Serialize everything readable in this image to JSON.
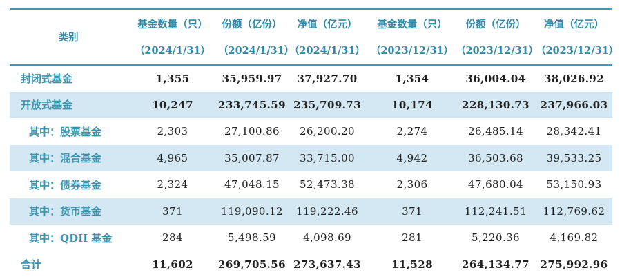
{
  "chart_data": {
    "type": "table",
    "columns": [
      {
        "label": "类别",
        "date": ""
      },
      {
        "label": "基金数量（只）",
        "date": "（2024/1/31）"
      },
      {
        "label": "份额（亿份）",
        "date": "（2024/1/31）"
      },
      {
        "label": "净值（亿元）",
        "date": "（2024/1/31）"
      },
      {
        "label": "基金数量（只）",
        "date": "（2023/12/31）"
      },
      {
        "label": "份额（亿份）",
        "date": "（2023/12/31）"
      },
      {
        "label": "净值（亿元）",
        "date": "（2023/12/31）"
      }
    ],
    "rows": [
      {
        "category": "封闭式基金",
        "indent": false,
        "bold": true,
        "striped": false,
        "values": [
          "1,355",
          "35,959.97",
          "37,927.70",
          "1,354",
          "36,004.04",
          "38,026.92"
        ]
      },
      {
        "category": "开放式基金",
        "indent": false,
        "bold": true,
        "striped": true,
        "values": [
          "10,247",
          "233,745.59",
          "235,709.73",
          "10,174",
          "228,130.73",
          "237,966.03"
        ]
      },
      {
        "category": "其中：股票基金",
        "indent": true,
        "bold": false,
        "striped": false,
        "values": [
          "2,303",
          "27,100.86",
          "26,200.20",
          "2,274",
          "26,485.14",
          "28,342.41"
        ]
      },
      {
        "category": "其中：混合基金",
        "indent": true,
        "bold": false,
        "striped": true,
        "values": [
          "4,965",
          "35,007.87",
          "33,715.00",
          "4,942",
          "36,503.68",
          "39,533.25"
        ]
      },
      {
        "category": "其中：债券基金",
        "indent": true,
        "bold": false,
        "striped": false,
        "values": [
          "2,324",
          "47,048.15",
          "52,473.38",
          "2,306",
          "47,680.04",
          "53,150.93"
        ]
      },
      {
        "category": "其中：货币基金",
        "indent": true,
        "bold": false,
        "striped": true,
        "values": [
          "371",
          "119,090.12",
          "119,222.46",
          "371",
          "112,241.51",
          "112,769.62"
        ]
      },
      {
        "category": "其中：QDII 基金",
        "indent": true,
        "bold": false,
        "striped": false,
        "values": [
          "284",
          "5,498.59",
          "4,098.69",
          "281",
          "5,220.36",
          "4,169.82"
        ]
      },
      {
        "category": "合计",
        "indent": false,
        "bold": true,
        "striped": false,
        "values": [
          "11,602",
          "269,705.56",
          "273,637.43",
          "11,528",
          "264,134.77",
          "275,992.96"
        ]
      }
    ],
    "colors": {
      "header_text": "#2e8aa8",
      "category_text": "#3a93ae",
      "border": "#3e97b4",
      "stripe": "#d3e8f2",
      "number_text": "#1f1f1f"
    }
  }
}
